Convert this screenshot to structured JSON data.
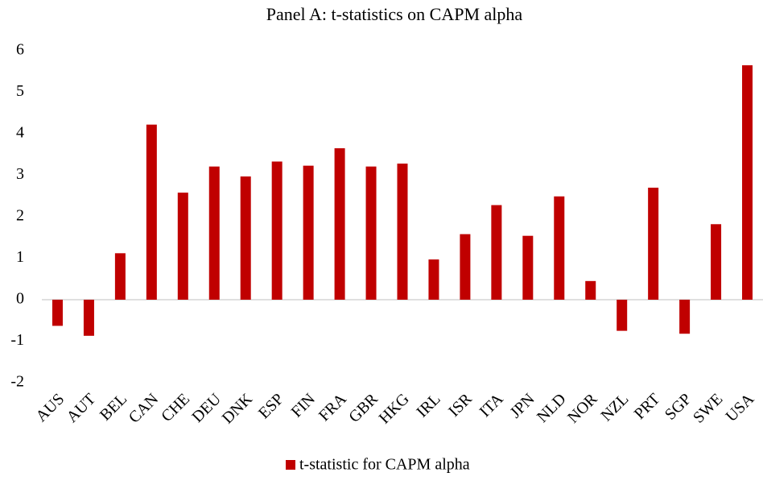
{
  "chart_data": {
    "type": "bar",
    "title": "Panel A: t-statistics on CAPM alpha",
    "categories": [
      "AUS",
      "AUT",
      "BEL",
      "CAN",
      "CHE",
      "DEU",
      "DNK",
      "ESP",
      "FIN",
      "FRA",
      "GBR",
      "HKG",
      "IRL",
      "ISR",
      "ITA",
      "JPN",
      "NLD",
      "NOR",
      "NZL",
      "PRT",
      "SGP",
      "SWE",
      "USA"
    ],
    "series": [
      {
        "name": "t-statistic for CAPM alpha",
        "color": "#c00000",
        "values": [
          -0.63,
          -0.87,
          1.12,
          4.22,
          2.58,
          3.21,
          2.97,
          3.33,
          3.23,
          3.65,
          3.21,
          3.28,
          0.97,
          1.58,
          2.28,
          1.54,
          2.49,
          0.45,
          -0.75,
          2.7,
          -0.82,
          1.82,
          5.65
        ]
      }
    ],
    "ylim": [
      -2,
      6
    ],
    "yticks": [
      -2,
      -1,
      0,
      1,
      2,
      3,
      4,
      5,
      6
    ],
    "grid": false,
    "legend": "bottom"
  }
}
